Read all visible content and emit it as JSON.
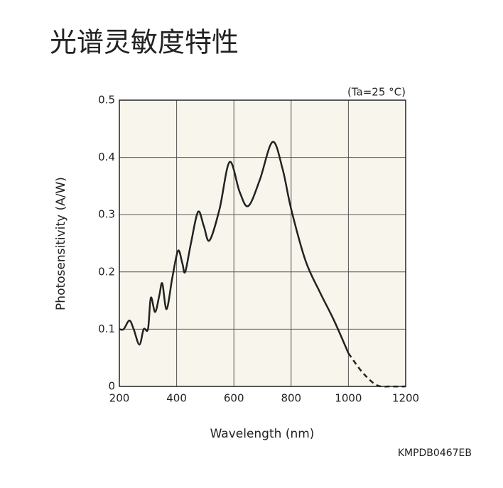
{
  "header": {
    "title": "光谱灵敏度特性"
  },
  "chart_data": {
    "type": "line",
    "annotation": "(Ta=25 °C)",
    "x_label": "Wavelength (nm)",
    "y_label": "Photosensitivity (A/W)",
    "x": [
      200,
      215,
      235,
      250,
      270,
      285,
      300,
      310,
      325,
      340,
      350,
      365,
      385,
      405,
      420,
      430,
      450,
      475,
      495,
      515,
      550,
      585,
      620,
      650,
      690,
      735,
      770,
      800,
      850,
      900,
      950,
      1000,
      1050,
      1100,
      1150,
      1200
    ],
    "series": [
      {
        "color": "#222222",
        "line_style": "solid",
        "values": [
          0.1,
          0.1,
          0.115,
          0.1,
          0.073,
          0.1,
          0.1,
          0.155,
          0.13,
          0.16,
          0.18,
          0.135,
          0.19,
          0.237,
          0.215,
          0.2,
          0.25,
          0.305,
          0.28,
          0.255,
          0.31,
          0.392,
          0.34,
          0.315,
          0.36,
          0.427,
          0.38,
          0.31,
          0.22,
          0.165,
          0.115,
          0.058,
          null,
          null,
          null,
          null
        ]
      },
      {
        "color": "#222222",
        "line_style": "dashed",
        "values": [
          null,
          null,
          null,
          null,
          null,
          null,
          null,
          null,
          null,
          null,
          null,
          null,
          null,
          null,
          null,
          null,
          null,
          null,
          null,
          null,
          null,
          null,
          null,
          null,
          null,
          null,
          null,
          null,
          null,
          null,
          null,
          0.058,
          0.024,
          0.002,
          0,
          0
        ]
      }
    ],
    "xlim": [
      200,
      1200
    ],
    "ylim": [
      0,
      0.5
    ],
    "xticks": [
      200,
      400,
      600,
      800,
      1000,
      1200
    ],
    "yticks": [
      0,
      0.1,
      0.2,
      0.3,
      0.4,
      0.5
    ],
    "grid": true,
    "plot_background": "#f8f6ec"
  },
  "footer": {
    "code": "KMPDB0467EB"
  }
}
